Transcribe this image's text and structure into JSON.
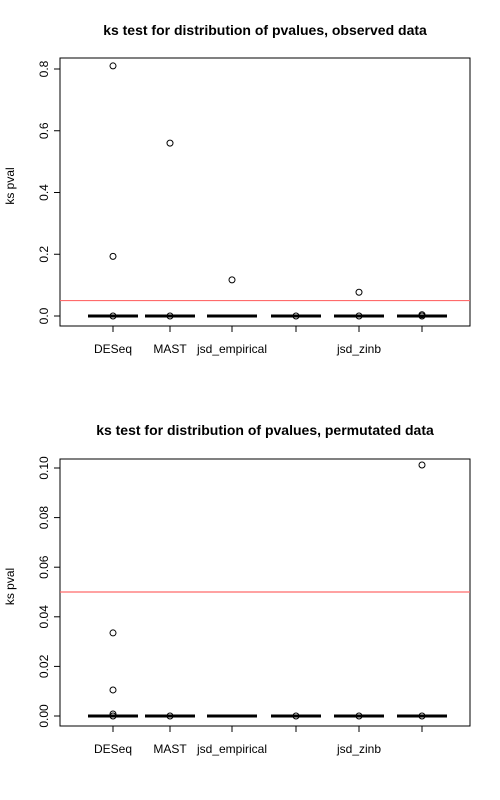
{
  "chart_data": [
    {
      "type": "boxplot",
      "title": "ks test for distribution of pvalues, observed data",
      "xlabel": "",
      "ylabel": "ks pval",
      "ylim": [
        0.0,
        0.8
      ],
      "yticks": [
        "0.0",
        "0.2",
        "0.4",
        "0.6",
        "0.8"
      ],
      "categories": [
        "DESeq",
        "MAST",
        "jsd_empirical",
        "",
        "jsd_zinb",
        ""
      ],
      "medians": [
        0,
        0,
        0,
        0,
        0,
        0
      ],
      "outliers": [
        [
          0.81,
          0.193,
          0.0
        ],
        [
          0.56,
          0.0
        ],
        [
          0.117
        ],
        [
          0.0
        ],
        [
          0.077,
          0.0
        ],
        [
          0.004,
          0.0
        ]
      ],
      "reference_line": {
        "y": 0.05,
        "color": "#ff6b6b"
      }
    },
    {
      "type": "boxplot",
      "title": "ks test for distribution of pvalues, permutated data",
      "xlabel": "",
      "ylabel": "ks pval",
      "ylim": [
        0.0,
        0.1
      ],
      "yticks": [
        "0.00",
        "0.02",
        "0.04",
        "0.06",
        "0.08",
        "0.10"
      ],
      "categories": [
        "DESeq",
        "MAST",
        "jsd_empirical",
        "",
        "jsd_zinb",
        ""
      ],
      "medians": [
        0,
        0,
        0,
        0,
        0,
        0
      ],
      "outliers": [
        [
          0.0335,
          0.0105,
          0.0008,
          0.0
        ],
        [
          0.0
        ],
        [],
        [
          0.0
        ],
        [
          0.0
        ],
        [
          0.1012,
          0.0
        ]
      ],
      "reference_line": {
        "y": 0.05,
        "color": "#ff6b6b"
      }
    }
  ]
}
